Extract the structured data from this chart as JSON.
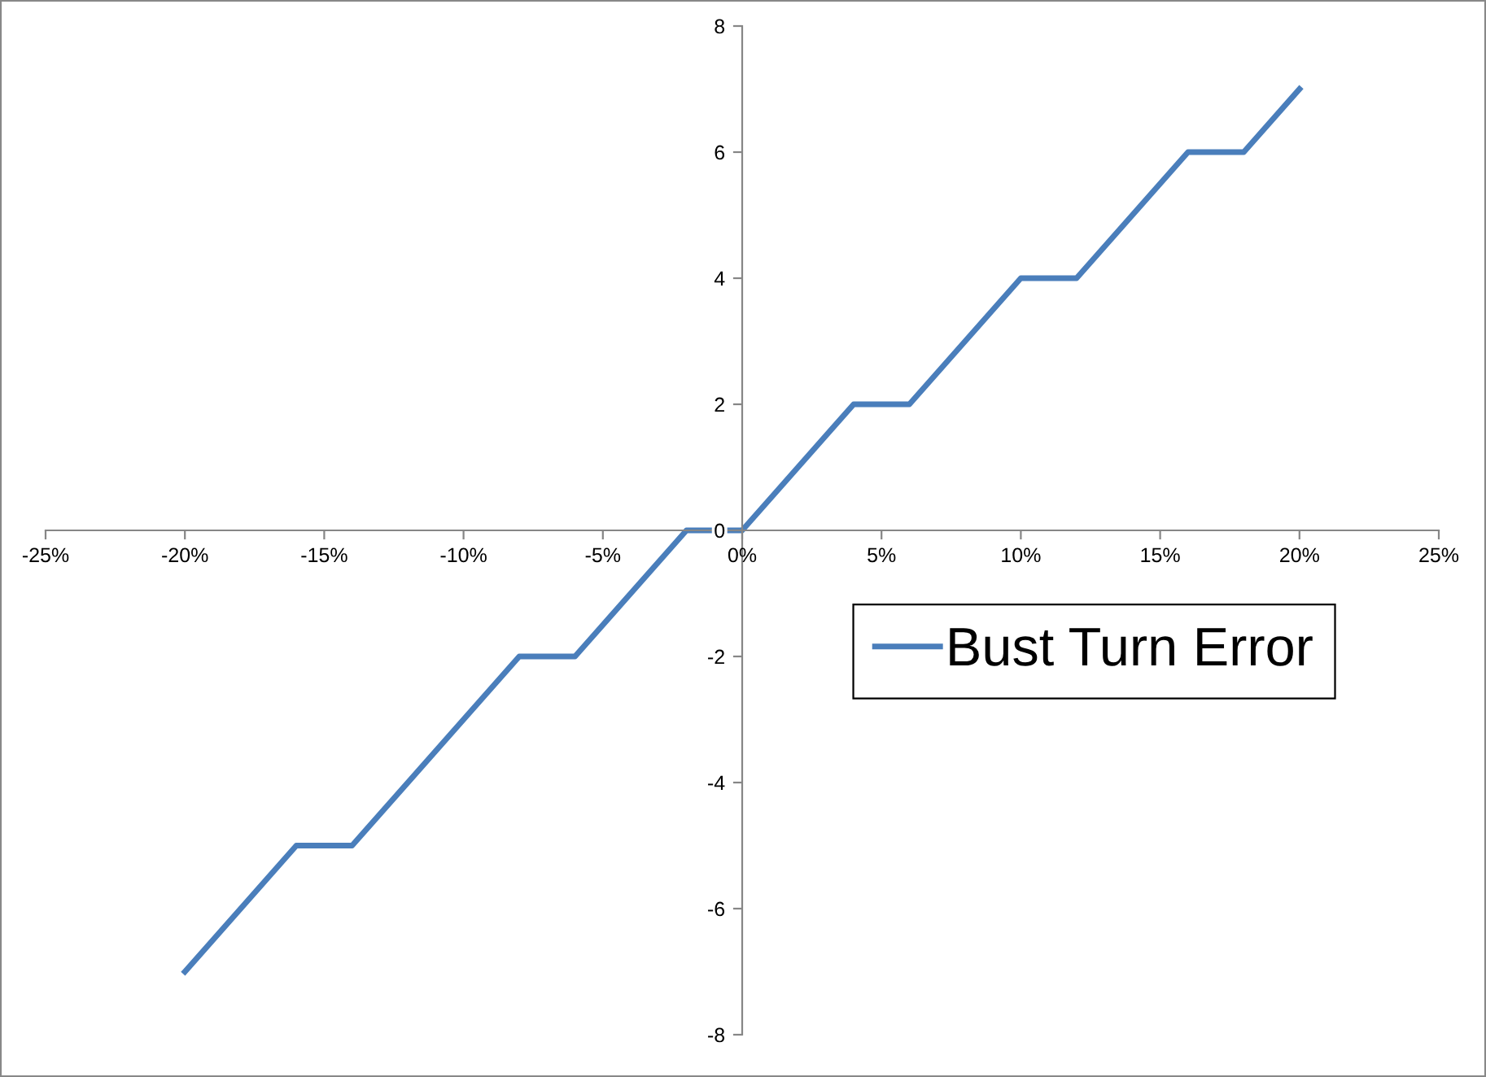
{
  "chart_data": {
    "type": "line",
    "x": [
      -20,
      -16,
      -14,
      -8,
      -6,
      -2,
      0,
      4,
      6,
      10,
      12,
      16,
      18,
      20
    ],
    "series": [
      {
        "name": "Bust Turn Error",
        "color": "#4a7ebb",
        "values": [
          -7,
          -5,
          -5,
          -2,
          -2,
          0,
          0,
          2,
          2,
          4,
          4,
          6,
          6,
          7
        ]
      }
    ],
    "xlim": [
      -25,
      25
    ],
    "xticks": [
      {
        "value": -25,
        "label": "-25%"
      },
      {
        "value": -20,
        "label": "-20%"
      },
      {
        "value": -15,
        "label": "-15%"
      },
      {
        "value": -10,
        "label": "-10%"
      },
      {
        "value": -5,
        "label": "-5%"
      },
      {
        "value": 0,
        "label": "0%"
      },
      {
        "value": 5,
        "label": "5%"
      },
      {
        "value": 10,
        "label": "10%"
      },
      {
        "value": 15,
        "label": "15%"
      },
      {
        "value": 20,
        "label": "20%"
      },
      {
        "value": 25,
        "label": "25%"
      }
    ],
    "ylim": [
      -8,
      8
    ],
    "yticks": [
      -8,
      -6,
      -4,
      -2,
      0,
      2,
      4,
      6,
      8
    ],
    "grid": false,
    "legend": "right",
    "marker": "none",
    "line_style": "solid"
  }
}
